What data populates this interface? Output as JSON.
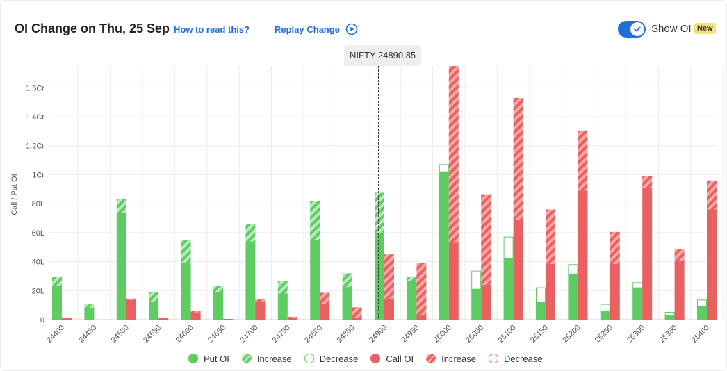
{
  "header": {
    "title": "OI Change on Thu, 25 Sep",
    "help_link": "How to read this?",
    "replay_label": "Replay Change",
    "toggle_label": "Show OI",
    "badge": "New"
  },
  "tooltip": "NIFTY 24890.85",
  "legend": [
    {
      "label": "Put OI",
      "style": "solid",
      "color": "#5ecb63"
    },
    {
      "label": "Increase",
      "style": "hatch",
      "color": "#5ecb63"
    },
    {
      "label": "Decrease",
      "style": "outline",
      "color": "#5ecb63"
    },
    {
      "label": "Call OI",
      "style": "solid",
      "color": "#e8605f"
    },
    {
      "label": "Increase",
      "style": "hatch",
      "color": "#e8605f"
    },
    {
      "label": "Decrease",
      "style": "outline",
      "color": "#e8605f"
    }
  ],
  "colors": {
    "put": "#5ecb63",
    "call": "#e8605f",
    "accent": "#1e6fd9",
    "spot_line": "#333333"
  },
  "chart_data": {
    "type": "bar",
    "ylabel": "Call / Put OI",
    "ylim": [
      0,
      17500000
    ],
    "yticks": [
      0,
      2000000,
      4000000,
      6000000,
      8000000,
      10000000,
      12000000,
      14000000,
      16000000
    ],
    "ytick_labels": [
      "0",
      "20L",
      "40L",
      "60L",
      "80L",
      "1Cr",
      "1.2Cr",
      "1.4Cr",
      "1.6Cr"
    ],
    "categories": [
      "24400",
      "24450",
      "24500",
      "24550",
      "24600",
      "24650",
      "24700",
      "24750",
      "24800",
      "24850",
      "24900",
      "24950",
      "25000",
      "25050",
      "25100",
      "25150",
      "25200",
      "25250",
      "25300",
      "25350",
      "25400"
    ],
    "spot": 24890.85,
    "spot_label": "NIFTY 24890.85",
    "series": [
      {
        "name": "Put OI",
        "base": [
          2350000,
          800000,
          7400000,
          1200000,
          3900000,
          1900000,
          5400000,
          1800000,
          5500000,
          2250000,
          6000000,
          2650000,
          10200000,
          2100000,
          4200000,
          1200000,
          3150000,
          600000,
          2200000,
          300000,
          900000
        ],
        "increase": [
          600000,
          250000,
          900000,
          700000,
          1600000,
          400000,
          1200000,
          850000,
          2700000,
          950000,
          2750000,
          300000,
          0,
          0,
          0,
          0,
          0,
          0,
          0,
          0,
          0
        ],
        "decrease": [
          0,
          0,
          0,
          0,
          0,
          0,
          0,
          0,
          0,
          0,
          0,
          0,
          500000,
          1250000,
          1500000,
          1000000,
          650000,
          450000,
          350000,
          200000,
          450000
        ]
      },
      {
        "name": "Call OI",
        "base": [
          100000,
          0,
          1350000,
          100000,
          450000,
          50000,
          1200000,
          150000,
          1100000,
          150000,
          1450000,
          300000,
          5300000,
          2400000,
          6900000,
          3850000,
          8900000,
          3850000,
          9100000,
          4050000,
          7600000
        ],
        "increase": [
          0,
          0,
          100000,
          0,
          150000,
          0,
          200000,
          50000,
          750000,
          700000,
          3050000,
          3600000,
          12200000,
          6250000,
          8400000,
          3750000,
          4150000,
          2200000,
          800000,
          800000,
          2000000
        ],
        "decrease": [
          0,
          0,
          0,
          0,
          0,
          0,
          0,
          0,
          0,
          0,
          0,
          0,
          0,
          0,
          0,
          0,
          0,
          0,
          0,
          0,
          0
        ]
      }
    ],
    "grid": true
  }
}
